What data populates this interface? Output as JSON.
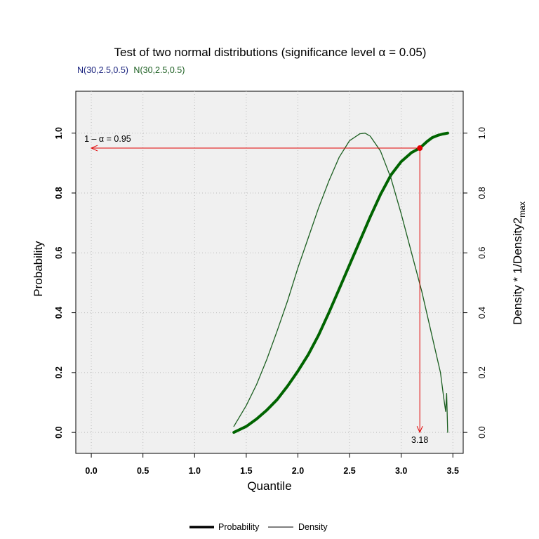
{
  "chart_data": {
    "type": "line",
    "title": "Test of two normal distributions (significance level α = 0.05)",
    "subtitle": [
      {
        "text": "N(30,2.5,0.5)",
        "color": "#1a237e"
      },
      {
        "text": "N(30,2.5,0.5)",
        "color": "#1b5e20"
      }
    ],
    "xlabel": "Quantile",
    "ylabel": "Probability",
    "ylabel_right": "Density * 1/Density2",
    "ylabel_right_subscript": "max",
    "xlim": [
      -0.15,
      3.6
    ],
    "ylim": [
      -0.07,
      1.14
    ],
    "xticks": [
      "0.0",
      "0.5",
      "1.0",
      "1.5",
      "2.0",
      "2.5",
      "3.0",
      "3.5"
    ],
    "xtick_values": [
      0,
      0.5,
      1,
      1.5,
      2,
      2.5,
      3,
      3.5
    ],
    "yticks": [
      "0.0",
      "0.2",
      "0.4",
      "0.6",
      "0.8",
      "1.0"
    ],
    "ytick_values": [
      0,
      0.2,
      0.4,
      0.6,
      0.8,
      1.0
    ],
    "yticks_right": [
      "0.0",
      "0.2",
      "0.4",
      "0.6",
      "0.8",
      "1.0"
    ],
    "grid": true,
    "background": "#f0f0f0",
    "series": [
      {
        "name": "Probability",
        "color": "#006400",
        "x": [
          1.38,
          1.5,
          1.6,
          1.7,
          1.8,
          1.9,
          2.0,
          2.1,
          2.2,
          2.3,
          2.4,
          2.5,
          2.6,
          2.7,
          2.8,
          2.9,
          3.0,
          3.1,
          3.18,
          3.25,
          3.3,
          3.35,
          3.4,
          3.45
        ],
        "y": [
          0.0,
          0.02,
          0.045,
          0.075,
          0.11,
          0.155,
          0.205,
          0.26,
          0.325,
          0.4,
          0.48,
          0.56,
          0.64,
          0.72,
          0.795,
          0.86,
          0.905,
          0.935,
          0.95,
          0.972,
          0.985,
          0.992,
          0.997,
          1.0
        ]
      },
      {
        "name": "Density",
        "color": "#1b5e20",
        "x": [
          1.38,
          1.5,
          1.6,
          1.7,
          1.8,
          1.9,
          2.0,
          2.1,
          2.2,
          2.3,
          2.4,
          2.5,
          2.6,
          2.65,
          2.7,
          2.8,
          2.9,
          3.0,
          3.1,
          3.2,
          3.3,
          3.38,
          3.41,
          3.43,
          3.44,
          3.45
        ],
        "y": [
          0.02,
          0.09,
          0.16,
          0.245,
          0.34,
          0.44,
          0.55,
          0.65,
          0.75,
          0.84,
          0.92,
          0.975,
          0.998,
          1.0,
          0.99,
          0.94,
          0.85,
          0.73,
          0.6,
          0.47,
          0.32,
          0.2,
          0.12,
          0.07,
          0.13,
          0.0
        ]
      }
    ],
    "annotations": {
      "alpha_label": "1 – α = 0.95",
      "level": 0.95,
      "quantile": 3.18,
      "quantile_label": "3.18",
      "color": "#e00000"
    },
    "legend": {
      "placement": "bottom",
      "items": [
        {
          "label": "Probability",
          "style": "thick"
        },
        {
          "label": "Density",
          "style": "thin"
        }
      ]
    }
  }
}
